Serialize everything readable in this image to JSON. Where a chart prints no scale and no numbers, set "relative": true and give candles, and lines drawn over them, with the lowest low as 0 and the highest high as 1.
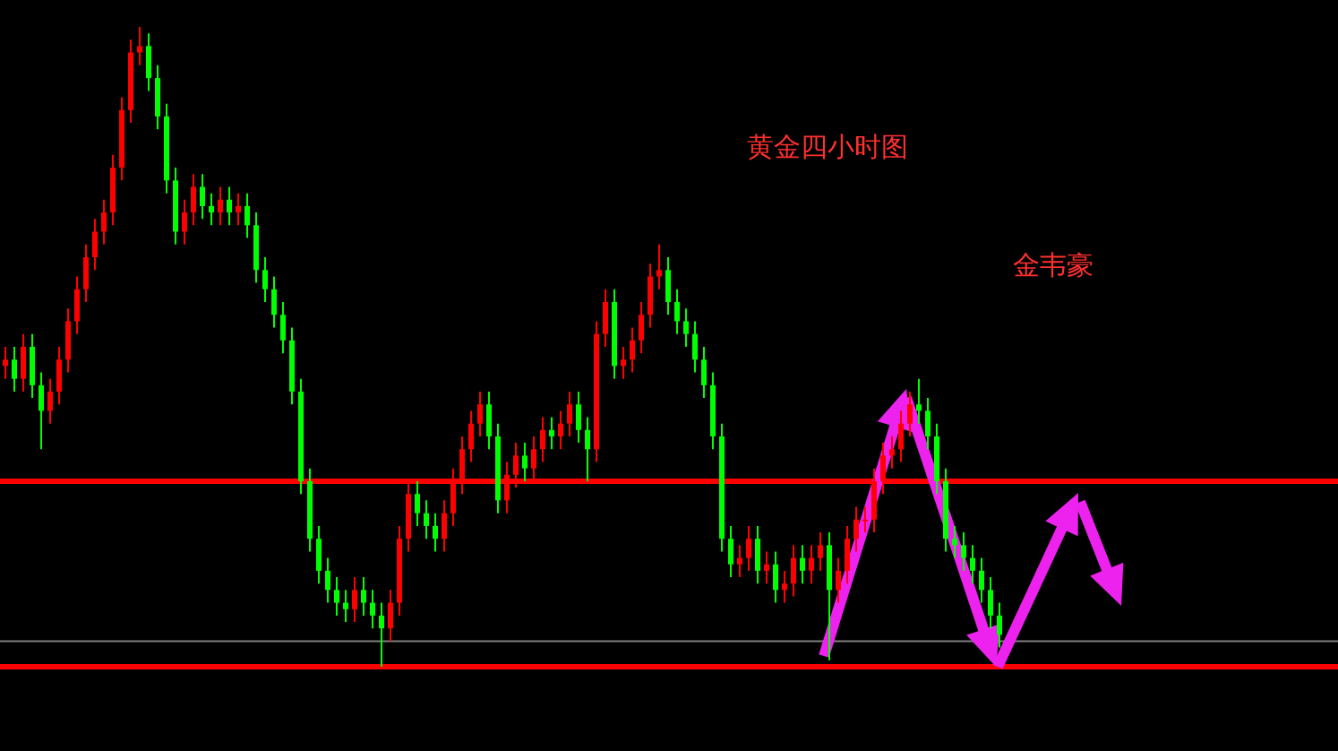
{
  "chart_data": {
    "type": "candlestick",
    "relative": true,
    "title": "黄金四小时图",
    "annotations": [
      "金韦豪"
    ],
    "categories": [
      null,
      null,
      null,
      null,
      null,
      null,
      null,
      null,
      null,
      null,
      null,
      null,
      null,
      null,
      null,
      null,
      null,
      null,
      null,
      null,
      null,
      null,
      null,
      null,
      null,
      null,
      null,
      null,
      null,
      null,
      null,
      null,
      null,
      null,
      null,
      null,
      null,
      null,
      null,
      null,
      null,
      null,
      null,
      null,
      null,
      null,
      null,
      null,
      null,
      null,
      null,
      null,
      null,
      null,
      null,
      null,
      null,
      null,
      null,
      null,
      null,
      null,
      null,
      null,
      null,
      null,
      null,
      null,
      null,
      null,
      null,
      null,
      null,
      null,
      null,
      null,
      null,
      null,
      null,
      null,
      null,
      null,
      null,
      null,
      null,
      null,
      null,
      null,
      null,
      null,
      null,
      null,
      null,
      null,
      null,
      null,
      null,
      null,
      null,
      null,
      null,
      null,
      null,
      null,
      null,
      null,
      null,
      null,
      null,
      null,
      null,
      null
    ],
    "ohlc": [
      [
        0.47,
        0.5,
        0.45,
        0.48
      ],
      [
        0.48,
        0.5,
        0.43,
        0.45
      ],
      [
        0.45,
        0.52,
        0.43,
        0.5
      ],
      [
        0.5,
        0.52,
        0.42,
        0.44
      ],
      [
        0.44,
        0.46,
        0.34,
        0.4
      ],
      [
        0.4,
        0.45,
        0.38,
        0.43
      ],
      [
        0.43,
        0.5,
        0.41,
        0.48
      ],
      [
        0.48,
        0.56,
        0.46,
        0.54
      ],
      [
        0.54,
        0.61,
        0.52,
        0.59
      ],
      [
        0.59,
        0.66,
        0.57,
        0.64
      ],
      [
        0.64,
        0.7,
        0.62,
        0.68
      ],
      [
        0.68,
        0.73,
        0.66,
        0.71
      ],
      [
        0.71,
        0.8,
        0.69,
        0.78
      ],
      [
        0.78,
        0.89,
        0.76,
        0.87
      ],
      [
        0.87,
        0.98,
        0.85,
        0.96
      ],
      [
        0.96,
        1,
        0.94,
        0.97
      ],
      [
        0.97,
        0.99,
        0.9,
        0.92
      ],
      [
        0.92,
        0.94,
        0.84,
        0.86
      ],
      [
        0.86,
        0.88,
        0.74,
        0.76
      ],
      [
        0.76,
        0.78,
        0.66,
        0.68
      ],
      [
        0.68,
        0.73,
        0.66,
        0.71
      ],
      [
        0.71,
        0.77,
        0.69,
        0.75
      ],
      [
        0.75,
        0.77,
        0.7,
        0.72
      ],
      [
        0.72,
        0.74,
        0.69,
        0.71
      ],
      [
        0.71,
        0.75,
        0.69,
        0.73
      ],
      [
        0.73,
        0.75,
        0.69,
        0.71
      ],
      [
        0.71,
        0.74,
        0.69,
        0.72
      ],
      [
        0.72,
        0.74,
        0.67,
        0.69
      ],
      [
        0.69,
        0.71,
        0.6,
        0.62
      ],
      [
        0.62,
        0.64,
        0.57,
        0.59
      ],
      [
        0.59,
        0.61,
        0.53,
        0.55
      ],
      [
        0.55,
        0.57,
        0.49,
        0.51
      ],
      [
        0.51,
        0.53,
        0.41,
        0.43
      ],
      [
        0.43,
        0.45,
        0.27,
        0.29
      ],
      [
        0.29,
        0.31,
        0.18,
        0.2
      ],
      [
        0.2,
        0.22,
        0.13,
        0.15
      ],
      [
        0.15,
        0.17,
        0.1,
        0.12
      ],
      [
        0.12,
        0.14,
        0.08,
        0.1
      ],
      [
        0.1,
        0.12,
        0.07,
        0.09
      ],
      [
        0.09,
        0.14,
        0.07,
        0.12
      ],
      [
        0.12,
        0.14,
        0.08,
        0.1
      ],
      [
        0.1,
        0.12,
        0.06,
        0.08
      ],
      [
        0.08,
        0.1,
        0,
        0.06
      ],
      [
        0.06,
        0.12,
        0.04,
        0.1
      ],
      [
        0.1,
        0.22,
        0.08,
        0.2
      ],
      [
        0.2,
        0.29,
        0.18,
        0.27
      ],
      [
        0.27,
        0.29,
        0.22,
        0.24
      ],
      [
        0.24,
        0.26,
        0.2,
        0.22
      ],
      [
        0.22,
        0.24,
        0.18,
        0.2
      ],
      [
        0.2,
        0.26,
        0.18,
        0.24
      ],
      [
        0.24,
        0.31,
        0.22,
        0.29
      ],
      [
        0.29,
        0.36,
        0.27,
        0.34
      ],
      [
        0.34,
        0.4,
        0.32,
        0.38
      ],
      [
        0.38,
        0.43,
        0.36,
        0.41
      ],
      [
        0.41,
        0.43,
        0.34,
        0.36
      ],
      [
        0.36,
        0.38,
        0.24,
        0.26
      ],
      [
        0.26,
        0.32,
        0.24,
        0.3
      ],
      [
        0.3,
        0.35,
        0.28,
        0.33
      ],
      [
        0.33,
        0.35,
        0.29,
        0.31
      ],
      [
        0.31,
        0.36,
        0.29,
        0.34
      ],
      [
        0.34,
        0.39,
        0.32,
        0.37
      ],
      [
        0.37,
        0.39,
        0.34,
        0.36
      ],
      [
        0.36,
        0.4,
        0.34,
        0.38
      ],
      [
        0.38,
        0.43,
        0.36,
        0.41
      ],
      [
        0.41,
        0.43,
        0.35,
        0.37
      ],
      [
        0.37,
        0.39,
        0.29,
        0.34
      ],
      [
        0.34,
        0.54,
        0.32,
        0.52
      ],
      [
        0.52,
        0.59,
        0.5,
        0.57
      ],
      [
        0.57,
        0.59,
        0.45,
        0.47
      ],
      [
        0.47,
        0.5,
        0.45,
        0.48
      ],
      [
        0.48,
        0.53,
        0.46,
        0.51
      ],
      [
        0.51,
        0.57,
        0.49,
        0.55
      ],
      [
        0.55,
        0.63,
        0.53,
        0.61
      ],
      [
        0.61,
        0.66,
        0.59,
        0.62
      ],
      [
        0.62,
        0.64,
        0.55,
        0.57
      ],
      [
        0.57,
        0.59,
        0.52,
        0.54
      ],
      [
        0.54,
        0.56,
        0.5,
        0.52
      ],
      [
        0.52,
        0.54,
        0.46,
        0.48
      ],
      [
        0.48,
        0.5,
        0.42,
        0.44
      ],
      [
        0.44,
        0.46,
        0.34,
        0.36
      ],
      [
        0.36,
        0.38,
        0.18,
        0.2
      ],
      [
        0.2,
        0.22,
        0.14,
        0.16
      ],
      [
        0.16,
        0.19,
        0.14,
        0.17
      ],
      [
        0.17,
        0.22,
        0.15,
        0.2
      ],
      [
        0.2,
        0.22,
        0.13,
        0.15
      ],
      [
        0.15,
        0.18,
        0.13,
        0.16
      ],
      [
        0.16,
        0.18,
        0.1,
        0.12
      ],
      [
        0.12,
        0.15,
        0.1,
        0.13
      ],
      [
        0.13,
        0.19,
        0.11,
        0.17
      ],
      [
        0.17,
        0.19,
        0.13,
        0.15
      ],
      [
        0.15,
        0.19,
        0.13,
        0.17
      ],
      [
        0.17,
        0.21,
        0.15,
        0.19
      ],
      [
        0.19,
        0.21,
        0.01,
        0.12
      ],
      [
        0.12,
        0.17,
        0.1,
        0.15
      ],
      [
        0.15,
        0.22,
        0.13,
        0.2
      ],
      [
        0.2,
        0.25,
        0.18,
        0.23
      ],
      [
        0.23,
        0.25,
        0.21,
        0.23
      ],
      [
        0.23,
        0.31,
        0.21,
        0.29
      ],
      [
        0.29,
        0.35,
        0.27,
        0.33
      ],
      [
        0.33,
        0.36,
        0.31,
        0.34
      ],
      [
        0.34,
        0.4,
        0.32,
        0.38
      ],
      [
        0.38,
        0.43,
        0.36,
        0.41
      ],
      [
        0.41,
        0.45,
        0.38,
        0.4
      ],
      [
        0.4,
        0.42,
        0.34,
        0.36
      ],
      [
        0.36,
        0.38,
        0.27,
        0.29
      ],
      [
        0.29,
        0.31,
        0.18,
        0.2
      ],
      [
        0.2,
        0.22,
        0.17,
        0.19
      ],
      [
        0.19,
        0.21,
        0.15,
        0.17
      ],
      [
        0.17,
        0.19,
        0.13,
        0.15
      ],
      [
        0.15,
        0.17,
        0.1,
        0.12
      ],
      [
        0.12,
        0.14,
        0.06,
        0.08
      ],
      [
        0.08,
        0.1,
        0.03,
        0.05
      ]
    ],
    "ref_lines": [
      {
        "axis": "y",
        "value": 0.29,
        "color": "#ff0000"
      },
      {
        "axis": "y",
        "value": 0.04,
        "color": "#808080"
      },
      {
        "axis": "y",
        "value": 0,
        "color": "#ff0000"
      }
    ]
  }
}
